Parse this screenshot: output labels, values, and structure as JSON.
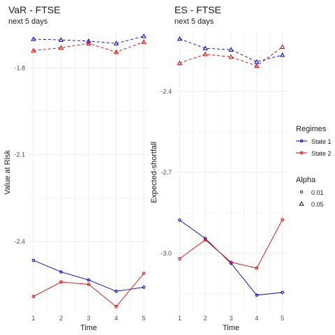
{
  "chart_data": [
    {
      "type": "line",
      "title": "VaR - FTSE",
      "subtitle": "next 5 days",
      "xlabel": "Time",
      "ylabel": "Value at Risk",
      "x": [
        1,
        2,
        3,
        4,
        5
      ],
      "xticks": [
        "1",
        "2",
        "3",
        "4",
        "5"
      ],
      "yticks": [
        -2.4,
        -2.1,
        -1.8
      ],
      "ytick_labels": [
        "-2.4",
        "-2.1",
        "-1.8"
      ],
      "ylim": [
        -2.646,
        -1.676
      ],
      "grid": true,
      "series": [
        {
          "regime": "State 1",
          "alpha": "0.01",
          "values": [
            -2.465,
            -2.505,
            -2.533,
            -2.572,
            -2.558
          ]
        },
        {
          "regime": "State 2",
          "alpha": "0.01",
          "values": [
            -2.59,
            -2.54,
            -2.548,
            -2.625,
            -2.51
          ]
        },
        {
          "regime": "State 1",
          "alpha": "0.05",
          "values": [
            -1.7,
            -1.703,
            -1.707,
            -1.715,
            -1.69
          ]
        },
        {
          "regime": "State 2",
          "alpha": "0.05",
          "values": [
            -1.74,
            -1.73,
            -1.715,
            -1.745,
            -1.71
          ]
        }
      ]
    },
    {
      "type": "line",
      "title": "ES - FTSE",
      "subtitle": "next 5 days",
      "xlabel": "Time",
      "ylabel": "Expected-shortfall",
      "x": [
        1,
        2,
        3,
        4,
        5
      ],
      "xticks": [
        "1",
        "2",
        "3",
        "4",
        "5"
      ],
      "yticks": [
        -3.0,
        -2.7,
        -2.4
      ],
      "ytick_labels": [
        "-3.0",
        "-2.7",
        "-2.4"
      ],
      "ylim": [
        -3.22,
        -2.18
      ],
      "grid": true,
      "series": [
        {
          "regime": "State 1",
          "alpha": "0.01",
          "values": [
            -2.877,
            -2.945,
            -3.037,
            -3.155,
            -3.145
          ]
        },
        {
          "regime": "State 2",
          "alpha": "0.01",
          "values": [
            -3.02,
            -2.95,
            -3.033,
            -3.055,
            -2.875
          ]
        },
        {
          "regime": "State 1",
          "alpha": "0.05",
          "values": [
            -2.205,
            -2.24,
            -2.245,
            -2.29,
            -2.265
          ]
        },
        {
          "regime": "State 2",
          "alpha": "0.05",
          "values": [
            -2.295,
            -2.262,
            -2.272,
            -2.305,
            -2.235
          ]
        }
      ]
    }
  ],
  "legend": {
    "regime_title": "Regimes",
    "regimes": [
      {
        "label": "State 1",
        "color": "#0000cd"
      },
      {
        "label": "State 2",
        "color": "#e00000"
      }
    ],
    "alpha_title": "Alpha",
    "alphas": [
      {
        "label": "0.01",
        "shape": "circle",
        "linetype": "solid"
      },
      {
        "label": "0.05",
        "shape": "triangle",
        "linetype": "dashed"
      }
    ],
    "placement": "right"
  },
  "colors": {
    "state1": "#0000cd",
    "state2": "#e00000",
    "grid": "#ebebeb"
  }
}
